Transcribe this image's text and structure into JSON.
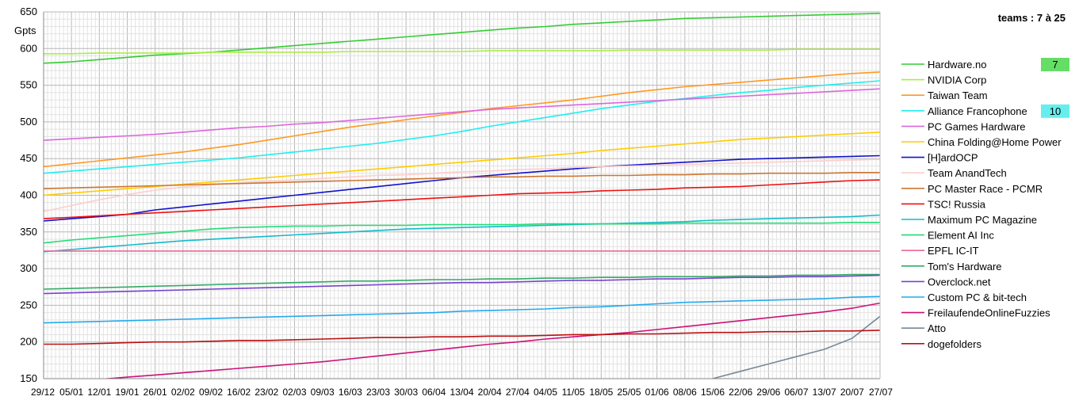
{
  "chart_data": {
    "type": "line",
    "title": "teams : 7 à 25",
    "ylabel": "Gpts",
    "xlabel": "",
    "ylim": [
      150,
      650
    ],
    "yticks": [
      150,
      200,
      250,
      300,
      350,
      400,
      450,
      500,
      550,
      600,
      650
    ],
    "grid": true,
    "legend_position": "right",
    "x": [
      "29/12",
      "05/01",
      "12/01",
      "19/01",
      "26/01",
      "02/02",
      "09/02",
      "16/02",
      "23/02",
      "02/03",
      "09/03",
      "16/03",
      "23/03",
      "30/03",
      "06/04",
      "13/04",
      "20/04",
      "27/04",
      "04/05",
      "11/05",
      "18/05",
      "25/05",
      "01/06",
      "08/06",
      "15/06",
      "22/06",
      "29/06",
      "06/07",
      "13/07",
      "20/07",
      "27/07"
    ],
    "series": [
      {
        "name": "Hardware.no",
        "color": "#33cc33",
        "badge": "7",
        "badge_color": "#66dd66",
        "values": [
          580,
          582,
          585,
          588,
          591,
          593,
          595,
          598,
          601,
          604,
          607,
          610,
          613,
          616,
          619,
          622,
          625,
          628,
          630,
          633,
          635,
          637,
          639,
          641,
          642,
          643,
          644,
          645,
          646,
          647,
          648
        ]
      },
      {
        "name": "NVIDIA Corp",
        "color": "#aaee44",
        "values": [
          593,
          593,
          594,
          594,
          594,
          594,
          595,
          595,
          595,
          595,
          595,
          596,
          596,
          596,
          596,
          596,
          597,
          597,
          597,
          597,
          597,
          598,
          598,
          598,
          598,
          598,
          598,
          599,
          599,
          599,
          599
        ]
      },
      {
        "name": "Taiwan Team",
        "color": "#ff9922",
        "values": [
          439,
          443,
          447,
          451,
          455,
          459,
          464,
          469,
          475,
          481,
          487,
          493,
          498,
          503,
          508,
          513,
          518,
          522,
          526,
          530,
          535,
          540,
          544,
          548,
          551,
          554,
          557,
          560,
          563,
          566,
          568
        ]
      },
      {
        "name": "Alliance Francophone",
        "color": "#22eeee",
        "badge": "10",
        "badge_color": "#66eeee",
        "values": [
          430,
          433,
          436,
          439,
          442,
          445,
          448,
          451,
          455,
          459,
          463,
          467,
          471,
          476,
          481,
          487,
          494,
          500,
          506,
          512,
          518,
          523,
          528,
          532,
          536,
          540,
          543,
          547,
          550,
          553,
          556
        ]
      },
      {
        "name": "PC Games Hardware",
        "color": "#dd66dd",
        "values": [
          475,
          477,
          479,
          481,
          483,
          486,
          489,
          492,
          494,
          497,
          499,
          502,
          505,
          508,
          511,
          514,
          517,
          519,
          521,
          523,
          525,
          527,
          529,
          531,
          533,
          535,
          537,
          539,
          541,
          543,
          545
        ]
      },
      {
        "name": "China Folding@Home Power",
        "color": "#ffcc00",
        "values": [
          400,
          403,
          406,
          409,
          412,
          415,
          418,
          421,
          424,
          427,
          430,
          433,
          436,
          439,
          442,
          445,
          448,
          451,
          454,
          457,
          461,
          464,
          467,
          470,
          473,
          476,
          478,
          480,
          482,
          484,
          486
        ]
      },
      {
        "name": "[H]ardOCP",
        "color": "#1111cc",
        "values": [
          365,
          368,
          371,
          374,
          380,
          384,
          388,
          392,
          396,
          400,
          404,
          408,
          412,
          416,
          420,
          424,
          427,
          430,
          433,
          436,
          439,
          441,
          443,
          445,
          447,
          449,
          450,
          451,
          452,
          453,
          454
        ]
      },
      {
        "name": "Team AnandTech",
        "color": "#ffcccc",
        "values": [
          378,
          386,
          394,
          401,
          407,
          411,
          414,
          417,
          419,
          421,
          423,
          425,
          427,
          428,
          430,
          432,
          433,
          435,
          436,
          438,
          439,
          440,
          441,
          442,
          443,
          444,
          445,
          446,
          447,
          448,
          449
        ]
      },
      {
        "name": "PC Master Race - PCMR",
        "color": "#cc7733",
        "values": [
          409,
          410,
          411,
          412,
          413,
          414,
          415,
          416,
          417,
          418,
          419,
          420,
          421,
          422,
          423,
          424,
          425,
          425,
          426,
          426,
          427,
          427,
          428,
          428,
          429,
          429,
          430,
          430,
          430,
          431,
          431
        ]
      },
      {
        "name": "TSC! Russia",
        "color": "#ee1111",
        "values": [
          368,
          370,
          372,
          374,
          376,
          378,
          380,
          382,
          384,
          386,
          388,
          390,
          392,
          394,
          396,
          398,
          400,
          402,
          403,
          404,
          406,
          407,
          408,
          410,
          411,
          412,
          414,
          416,
          418,
          420,
          421
        ]
      },
      {
        "name": "Maximum PC Magazine",
        "color": "#11bbcc",
        "values": [
          323,
          326,
          329,
          332,
          335,
          338,
          340,
          342,
          344,
          346,
          348,
          350,
          352,
          354,
          355,
          356,
          357,
          358,
          359,
          360,
          361,
          362,
          363,
          364,
          366,
          367,
          368,
          369,
          370,
          371,
          373
        ]
      },
      {
        "name": "Element AI Inc",
        "color": "#22dd77",
        "values": [
          335,
          339,
          342,
          345,
          348,
          351,
          354,
          356,
          357,
          358,
          358,
          359,
          359,
          359,
          360,
          360,
          360,
          360,
          361,
          361,
          361,
          361,
          361,
          362,
          362,
          362,
          362,
          362,
          362,
          363,
          363
        ]
      },
      {
        "name": "EPFL IC-IT",
        "color": "#ee6699",
        "values": [
          324,
          324,
          324,
          324,
          324,
          324,
          324,
          324,
          324,
          324,
          324,
          324,
          324,
          324,
          324,
          324,
          324,
          324,
          324,
          324,
          324,
          324,
          324,
          324,
          324,
          324,
          324,
          324,
          324,
          324,
          324
        ]
      },
      {
        "name": "Tom's Hardware",
        "color": "#33aa66",
        "values": [
          272,
          273,
          274,
          275,
          276,
          277,
          278,
          279,
          280,
          281,
          282,
          283,
          283,
          284,
          285,
          285,
          286,
          286,
          287,
          287,
          288,
          288,
          289,
          289,
          289,
          290,
          290,
          291,
          291,
          292,
          292
        ]
      },
      {
        "name": "Overclock.net",
        "color": "#7744cc",
        "values": [
          266,
          267,
          268,
          269,
          270,
          271,
          272,
          273,
          274,
          275,
          276,
          277,
          278,
          279,
          280,
          281,
          281,
          282,
          283,
          284,
          284,
          285,
          286,
          286,
          287,
          288,
          288,
          289,
          289,
          290,
          291
        ]
      },
      {
        "name": "Custom PC & bit-tech",
        "color": "#22aaee",
        "values": [
          226,
          227,
          228,
          229,
          230,
          231,
          232,
          233,
          234,
          235,
          236,
          237,
          238,
          239,
          240,
          242,
          243,
          244,
          245,
          247,
          248,
          250,
          252,
          254,
          255,
          256,
          257,
          258,
          259,
          261,
          262
        ]
      },
      {
        "name": "FreilaufendeOnlineFuzzies",
        "color": "#cc1177",
        "values": [
          null,
          null,
          149,
          152,
          155,
          158,
          161,
          164,
          167,
          170,
          173,
          177,
          181,
          185,
          189,
          193,
          197,
          200,
          204,
          207,
          210,
          213,
          217,
          221,
          225,
          229,
          233,
          237,
          241,
          246,
          253
        ]
      },
      {
        "name": "Atto",
        "color": "#778899",
        "values": [
          null,
          null,
          null,
          null,
          null,
          null,
          null,
          null,
          null,
          null,
          null,
          null,
          null,
          null,
          null,
          null,
          null,
          null,
          null,
          null,
          null,
          null,
          null,
          null,
          150,
          160,
          170,
          180,
          190,
          205,
          235
        ]
      },
      {
        "name": "dogefolders",
        "color": "#bb1111",
        "values": [
          197,
          197,
          198,
          199,
          200,
          200,
          201,
          202,
          202,
          203,
          204,
          205,
          206,
          206,
          207,
          207,
          208,
          208,
          209,
          210,
          210,
          211,
          211,
          212,
          213,
          213,
          214,
          214,
          215,
          215,
          216
        ]
      }
    ]
  }
}
